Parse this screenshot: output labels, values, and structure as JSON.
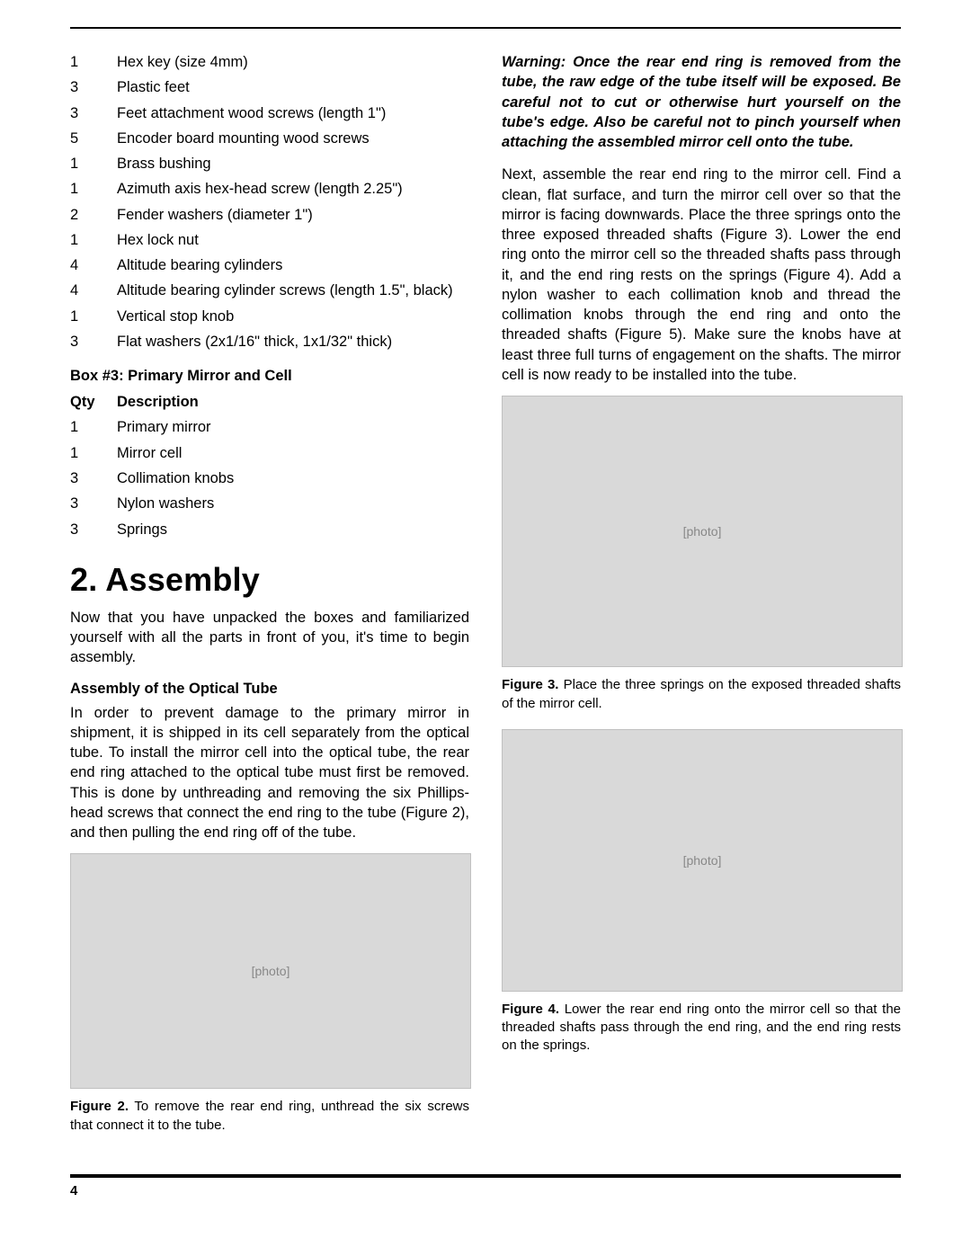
{
  "pageNumber": "4",
  "partsList1": [
    {
      "qty": "1",
      "desc": "Hex key (size 4mm)"
    },
    {
      "qty": "3",
      "desc": "Plastic feet"
    },
    {
      "qty": "3",
      "desc": "Feet attachment wood screws (length 1\")"
    },
    {
      "qty": "5",
      "desc": "Encoder board mounting wood screws"
    },
    {
      "qty": "1",
      "desc": "Brass bushing"
    },
    {
      "qty": "1",
      "desc": "Azimuth axis hex-head screw (length 2.25\")"
    },
    {
      "qty": "2",
      "desc": "Fender washers (diameter 1\")"
    },
    {
      "qty": "1",
      "desc": "Hex lock nut"
    },
    {
      "qty": "4",
      "desc": "Altitude bearing cylinders"
    },
    {
      "qty": "4",
      "desc": "Altitude bearing cylinder screws (length 1.5\", black)"
    },
    {
      "qty": "1",
      "desc": "Vertical stop knob"
    },
    {
      "qty": "3",
      "desc": "Flat washers (2x1/16\" thick, 1x1/32\" thick)"
    }
  ],
  "box3": {
    "heading": "Box #3: Primary Mirror and Cell",
    "qtyLabel": "Qty",
    "descLabel": "Description",
    "items": [
      {
        "qty": "1",
        "desc": "Primary mirror"
      },
      {
        "qty": "1",
        "desc": "Mirror cell"
      },
      {
        "qty": "3",
        "desc": "Collimation knobs"
      },
      {
        "qty": "3",
        "desc": "Nylon washers"
      },
      {
        "qty": "3",
        "desc": "Springs"
      }
    ]
  },
  "sectionTitle": "2. Assembly",
  "introPara": "Now that you have unpacked the boxes and familiarized yourself with all the parts in front of you, it's time to begin assembly.",
  "subHeading1": "Assembly of the Optical Tube",
  "para1": "In order to prevent damage to the primary mirror in shipment, it is shipped in its cell separately from the optical tube. To install the mirror cell into the optical tube, the rear end ring attached to the optical tube must first be removed. This is done by unthreading and removing the six Phillips-head screws that connect the end ring to the tube (Figure 2), and then pulling the end ring off of the tube.",
  "fig2": {
    "label": "Figure 2.",
    "text": " To remove the rear end ring, unthread the six screws that connect it to the tube."
  },
  "warning": "Warning: Once the rear end ring is removed from the tube, the raw edge of the tube itself will be exposed. Be careful not to cut or otherwise hurt yourself on the tube's edge. Also be careful not to pinch yourself when attaching the assembled mirror cell onto the tube.",
  "para2": "Next, assemble the rear end ring to the mirror cell. Find a clean, flat surface, and turn the mirror cell over so that the mirror is facing downwards. Place the three springs onto the three exposed threaded shafts (Figure 3). Lower the end ring onto the mirror cell so the threaded shafts pass through it, and the end ring rests on the springs (Figure 4). Add a nylon washer to each collimation knob and thread the collimation knobs through the end ring and onto the threaded shafts (Figure 5). Make sure the knobs have at least three full turns of engagement on the shafts. The mirror cell is now ready to be installed into the tube.",
  "fig3": {
    "label": "Figure 3.",
    "text": " Place the three springs on the exposed threaded shafts of the mirror cell."
  },
  "fig4": {
    "label": "Figure 4.",
    "text": " Lower the rear end ring onto the mirror cell so that the threaded shafts pass through the end ring, and the end ring rests on the springs."
  },
  "figBoxHeights": {
    "fig2": 260,
    "fig3": 300,
    "fig4": 290
  }
}
